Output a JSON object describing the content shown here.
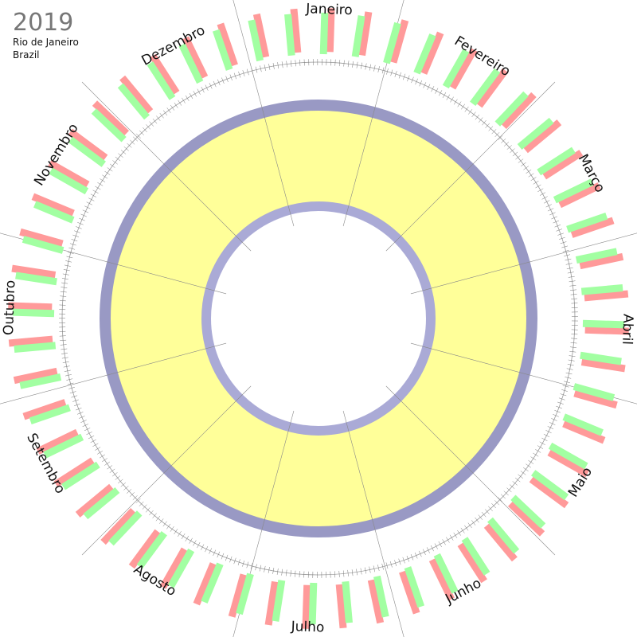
{
  "header": {
    "year": "2019",
    "city": "Rio de Janeiro",
    "country": "Brazil"
  },
  "months": [
    "Janeiro",
    "Fevereiro",
    "Março",
    "Abril",
    "Maio",
    "Junho",
    "Julho",
    "Agosto",
    "Setembro",
    "Outubro",
    "Novembro",
    "Dezembro"
  ]
}
